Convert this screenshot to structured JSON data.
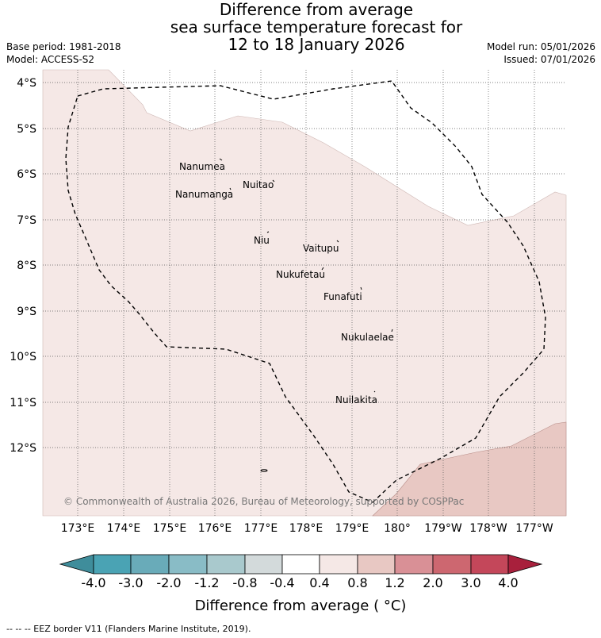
{
  "header": {
    "title_line1": "Difference from average",
    "title_line2": "sea surface temperature forecast for",
    "title_line3": "12 to 18 January 2026",
    "base_period": "Base period: 1981-2018",
    "model": "Model: ACCESS-S2",
    "model_run": "Model run: 05/01/2026",
    "issued": "Issued: 07/01/2026"
  },
  "map": {
    "lat_labels": [
      "4°S",
      "5°S",
      "6°S",
      "7°S",
      "8°S",
      "9°S",
      "10°S",
      "11°S",
      "12°S"
    ],
    "lon_labels": [
      "173°E",
      "174°E",
      "175°E",
      "176°E",
      "177°E",
      "178°E",
      "179°E",
      "180°",
      "179°W",
      "178°W",
      "177°W"
    ],
    "places": [
      "Nanumea",
      "Nuitao",
      "Nanumanga",
      "Niu",
      "Vaitupu",
      "Nukufetau",
      "Funafuti",
      "Nukulaelae",
      "Nuilakita"
    ],
    "copyright": "© Commonwealth of Australia 2026, Bureau of Meteorology, supported by COSPPac"
  },
  "colorbar": {
    "ticks": [
      "-4.0",
      "-3.0",
      "-2.0",
      "-1.2",
      "-0.8",
      "-0.4",
      "0.4",
      "0.8",
      "1.2",
      "2.0",
      "3.0",
      "4.0"
    ],
    "colors": [
      "#3f8d9b",
      "#4aa3b4",
      "#69abb9",
      "#89bcc6",
      "#a9c9cd",
      "#d3dadb",
      "#ffffff",
      "#f5e8e6",
      "#e8c8c3",
      "#d99096",
      "#cd6770",
      "#c4475a",
      "#a8203c"
    ],
    "label": "Difference from average ( °C)"
  },
  "legend": {
    "footer": "--  --  -- EEZ border V11 (Flanders Marine Institute, 2019)."
  }
}
